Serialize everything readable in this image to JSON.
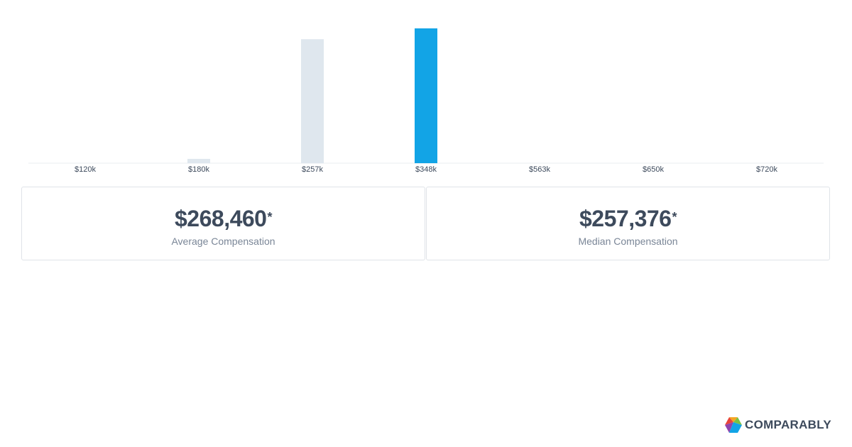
{
  "chart_data": {
    "type": "bar",
    "categories": [
      "$120k",
      "$180k",
      "$257k",
      "$348k",
      "$563k",
      "$650k",
      "$720k"
    ],
    "values": [
      0,
      3.2,
      92,
      100,
      0,
      0,
      0
    ],
    "highlight_index": 3,
    "ylim": [
      0,
      100
    ],
    "colors": {
      "bar": "#dfe7ee",
      "highlight": "#12a4e6",
      "axis": "#e9edf1",
      "tick_text": "#3d4a5c"
    }
  },
  "stats": {
    "average": {
      "value": "$268,460",
      "mark": "*",
      "label": "Average Compensation"
    },
    "median": {
      "value": "$257,376",
      "mark": "*",
      "label": "Median Compensation"
    }
  },
  "brand": {
    "name": "COMPARABLY",
    "icon": "comparably-logo-icon",
    "colors": [
      "#f5a623",
      "#e8443a",
      "#8e44ad",
      "#12a4e6",
      "#7ac143"
    ]
  }
}
